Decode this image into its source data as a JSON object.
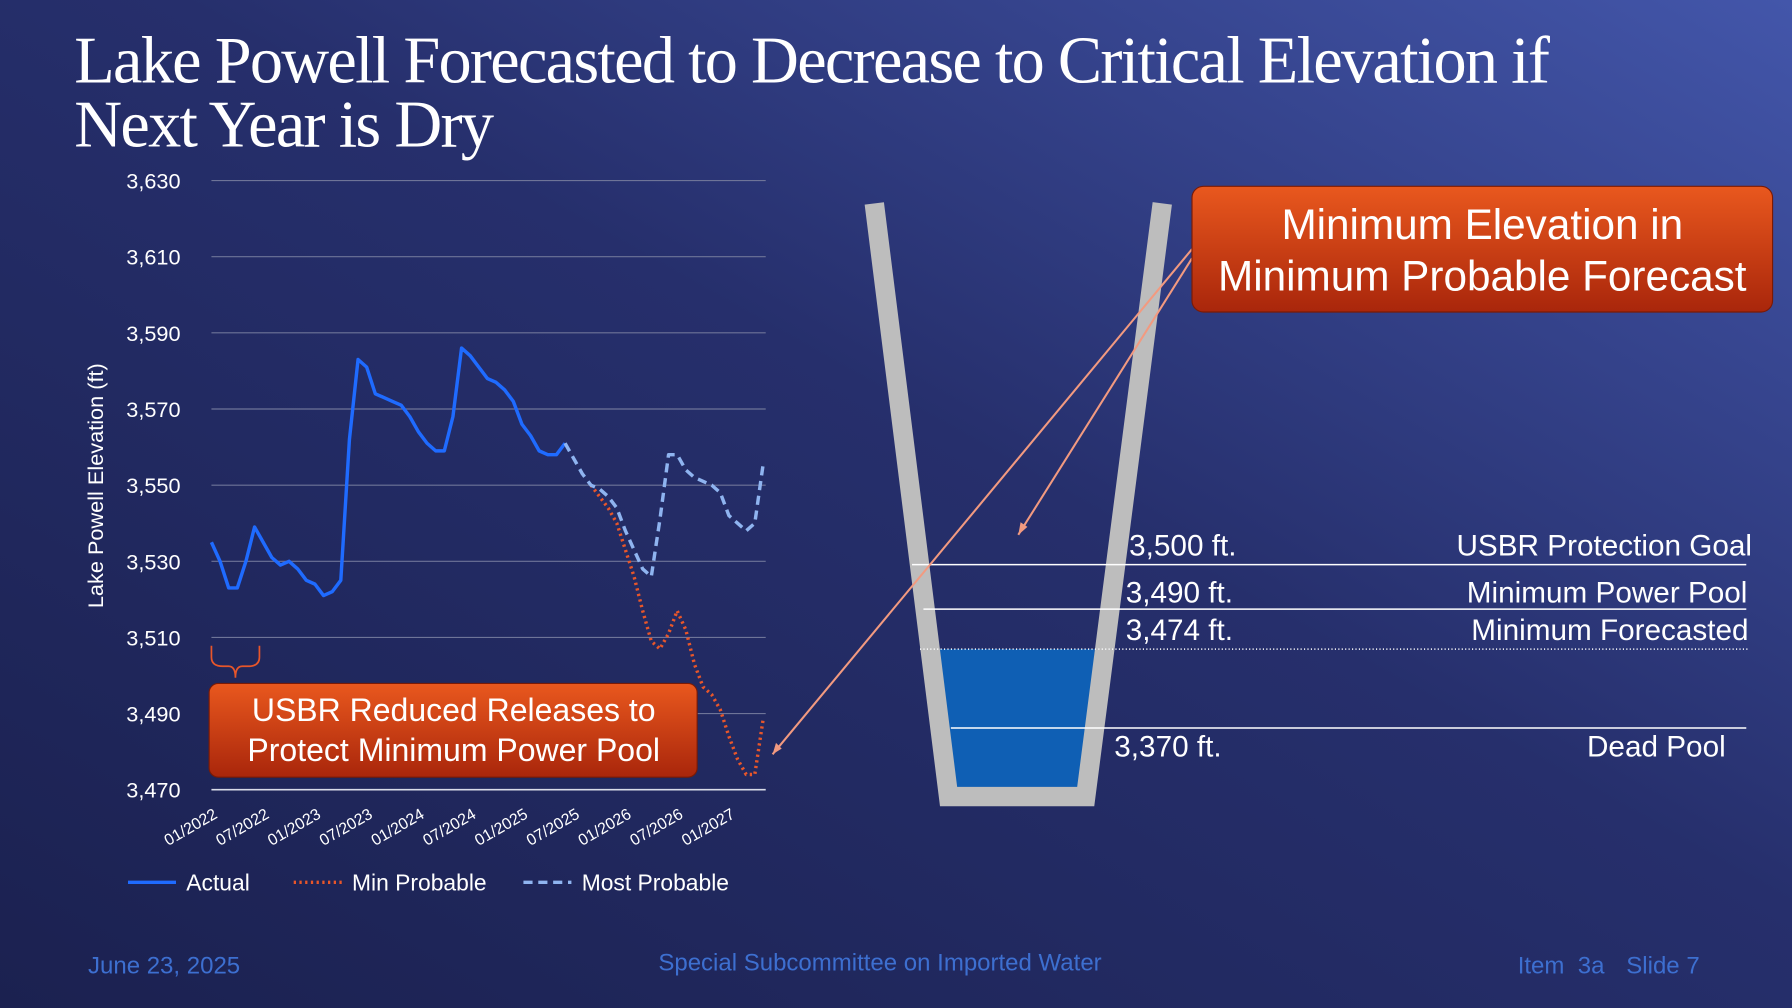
{
  "title_lines": [
    "Lake Powell Forecasted to Decrease to Critical Elevation if",
    "Next Year is Dry"
  ],
  "chart_data": {
    "type": "line",
    "y_label": "Lake Powell Elevation (ft)",
    "categories": [
      "01/2022",
      null,
      null,
      null,
      null,
      null,
      "07/2022",
      null,
      null,
      null,
      null,
      null,
      "01/2023",
      null,
      null,
      null,
      null,
      null,
      "07/2023",
      null,
      null,
      null,
      null,
      null,
      "01/2024",
      null,
      null,
      null,
      null,
      null,
      "07/2024",
      null,
      null,
      null,
      null,
      null,
      "01/2025",
      null,
      null,
      null,
      null,
      null,
      "07/2025",
      null,
      null,
      null,
      null,
      null,
      "01/2026",
      null,
      null,
      null,
      null,
      null,
      "07/2026",
      null,
      null,
      null,
      null,
      null,
      "01/2027",
      null,
      null,
      null,
      null
    ],
    "ylim": [
      3470,
      3630
    ],
    "yticks": [
      {
        "value": 3470,
        "label": "3,470"
      },
      {
        "value": 3490,
        "label": "3,490"
      },
      {
        "value": 3510,
        "label": "3,510"
      },
      {
        "value": 3530,
        "label": "3,530"
      },
      {
        "value": 3550,
        "label": "3,550"
      },
      {
        "value": 3570,
        "label": "3,570"
      },
      {
        "value": 3590,
        "label": "3,590"
      },
      {
        "value": 3610,
        "label": "3,610"
      },
      {
        "value": 3630,
        "label": "3,630"
      }
    ],
    "grid": true,
    "series": [
      {
        "name": "Actual",
        "color": "#1f6bff",
        "style": "solid",
        "values": [
          3535,
          3530,
          3523,
          3523,
          3530,
          3539,
          3535,
          3531,
          3529,
          3530,
          3528,
          3525,
          3524,
          3521,
          3522,
          3525,
          3562,
          3583,
          3581,
          3574,
          3573,
          3572,
          3571,
          3568,
          3564,
          3561,
          3559,
          3559,
          3568,
          3586,
          3584,
          3581,
          3578,
          3577,
          3575,
          3572,
          3566,
          3563,
          3559,
          3558,
          3558,
          3561,
          null,
          null,
          null,
          null,
          null,
          null,
          null,
          null,
          null,
          null,
          null,
          null,
          null,
          null,
          null,
          null,
          null,
          null,
          null,
          null,
          null,
          null,
          null
        ]
      },
      {
        "name": "Min Probable",
        "color": "#e8562a",
        "style": "dotted",
        "values": [
          null,
          null,
          null,
          null,
          null,
          null,
          null,
          null,
          null,
          null,
          null,
          null,
          null,
          null,
          null,
          null,
          null,
          null,
          null,
          null,
          null,
          null,
          null,
          null,
          null,
          null,
          null,
          null,
          null,
          null,
          null,
          null,
          null,
          null,
          null,
          null,
          null,
          null,
          null,
          null,
          null,
          null,
          null,
          null,
          3550,
          3547,
          3544,
          3540,
          3533,
          3526,
          3517,
          3509,
          3507,
          3511,
          3517,
          3512,
          3503,
          3497,
          3495,
          3491,
          3484,
          3478,
          3474,
          3474,
          3489
        ]
      },
      {
        "name": "Most Probable",
        "color": "#8fb4f0",
        "style": "dashed",
        "values": [
          null,
          null,
          null,
          null,
          null,
          null,
          null,
          null,
          null,
          null,
          null,
          null,
          null,
          null,
          null,
          null,
          null,
          null,
          null,
          null,
          null,
          null,
          null,
          null,
          null,
          null,
          null,
          null,
          null,
          null,
          null,
          null,
          null,
          null,
          null,
          null,
          null,
          null,
          null,
          null,
          null,
          3561,
          3557,
          3553,
          3550,
          3549,
          3547,
          3544,
          3538,
          3533,
          3528,
          3526,
          3541,
          3558,
          3558,
          3554,
          3552,
          3551,
          3550,
          3548,
          3542,
          3540,
          3538,
          3540,
          3556
        ]
      }
    ]
  },
  "callouts": {
    "releases": [
      "USBR Reduced Releases to",
      "Protect Minimum Power Pool"
    ],
    "minimum": [
      "Minimum Elevation in",
      "Minimum Probable Forecast"
    ]
  },
  "diagram": {
    "levels": [
      {
        "elevation": "3,500 ft.",
        "name": "USBR Protection Goal"
      },
      {
        "elevation": "3,490 ft.",
        "name": "Minimum Power Pool"
      },
      {
        "elevation": "3,474 ft.",
        "name": "Minimum Forecasted"
      },
      {
        "elevation": "3,370 ft.",
        "name": "Dead Pool"
      }
    ]
  },
  "footer": {
    "date": "June 23, 2025",
    "meeting": "Special Subcommittee on Imported Water",
    "item": "Item  3a",
    "slide": "Slide 7"
  }
}
